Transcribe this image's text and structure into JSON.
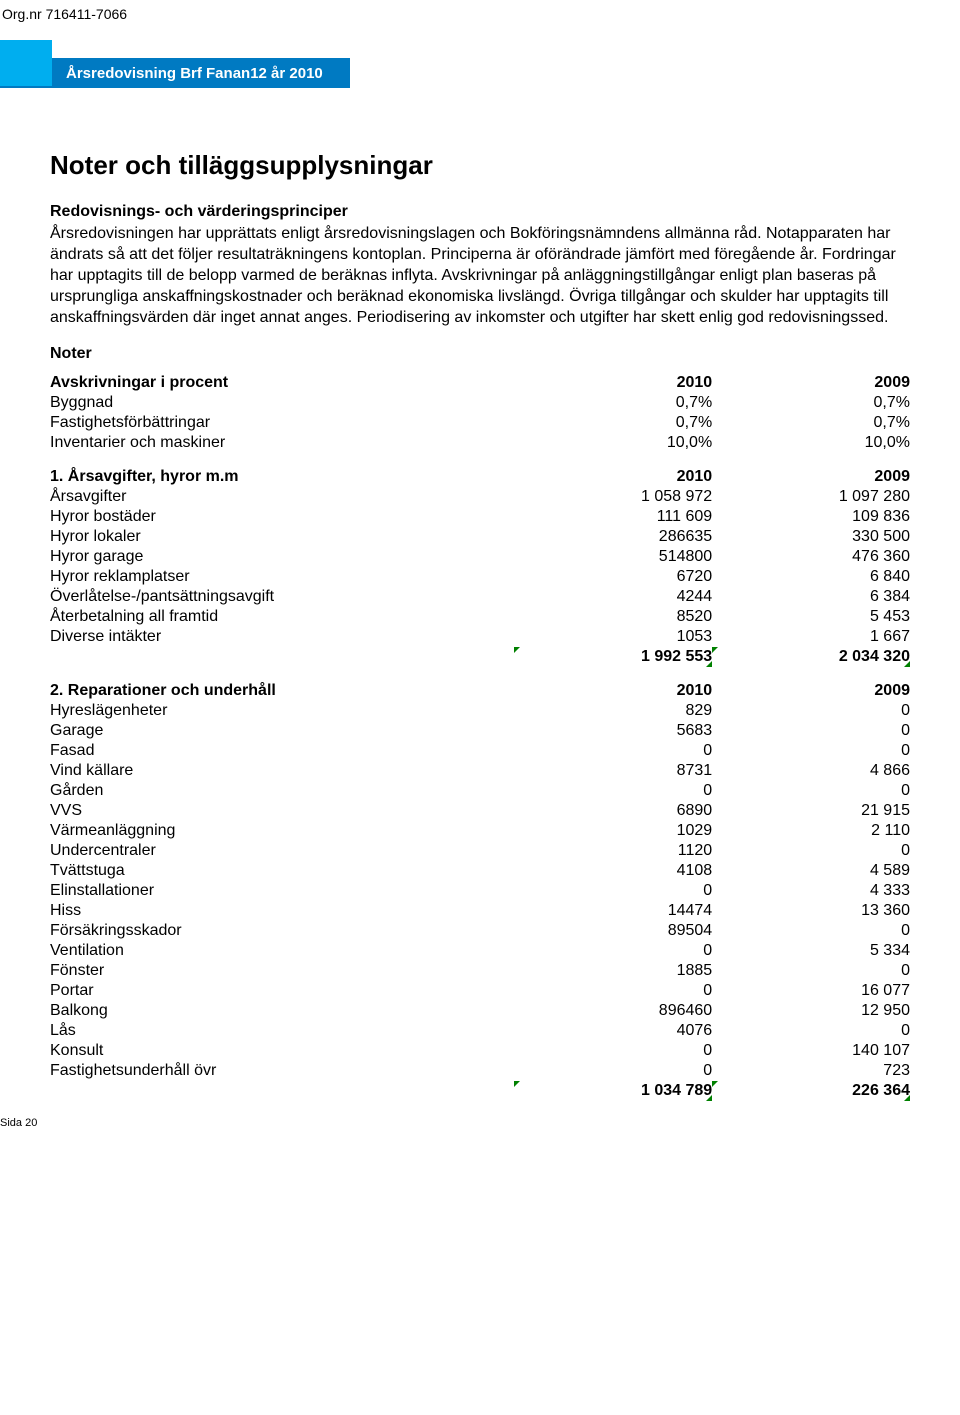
{
  "org_nr": "Org.nr 716411-7066",
  "banner_text": "Årsredovisning Brf Fanan12 år 2010",
  "main_heading": "Noter och tilläggsupplysningar",
  "sub_heading": "Redovisnings- och värderingsprinciper",
  "body_text": "Årsredovisningen har upprättats enligt årsredovisningslagen och Bokföringsnämndens allmänna råd. Notapparaten har ändrats så att det följer resultaträkningens kontoplan. Principerna är oförändrade jämfört med föregående år. Fordringar har upptagits till de belopp varmed de beräknas inflyta. Avskrivningar på anläggningstillgångar enligt plan baseras på ursprungliga anskaffningskostnader och beräknad ekonomiska livslängd. Övriga tillgångar och skulder har upptagits till anskaffningsvärden där inget annat anges. Periodisering av inkomster och utgifter har skett enlig god redovisningssed.",
  "noter_label": "Noter",
  "tables": {
    "avskrivningar": {
      "header": [
        "Avskrivningar i procent",
        "2010",
        "2009"
      ],
      "rows": [
        [
          "Byggnad",
          "0,7%",
          "0,7%"
        ],
        [
          "Fastighetsförbättringar",
          "0,7%",
          "0,7%"
        ],
        [
          "Inventarier och maskiner",
          "10,0%",
          "10,0%"
        ]
      ]
    },
    "arsavgifter": {
      "header": [
        "1. Årsavgifter, hyror m.m",
        "2010",
        "2009"
      ],
      "rows": [
        [
          "Årsavgifter",
          "1 058 972",
          "1 097 280"
        ],
        [
          "Hyror bostäder",
          "111 609",
          "109 836"
        ],
        [
          "Hyror lokaler",
          "286635",
          "330 500"
        ],
        [
          "Hyror garage",
          "514800",
          "476 360"
        ],
        [
          "Hyror reklamplatser",
          "6720",
          "6 840"
        ],
        [
          "Överlåtelse-/pantsättningsavgift",
          "4244",
          "6 384"
        ],
        [
          "Återbetalning all framtid",
          "8520",
          "5 453"
        ],
        [
          "Diverse intäkter",
          "1053",
          "1 667"
        ]
      ],
      "total": [
        "",
        "1 992 553",
        "2 034 320"
      ]
    },
    "reparationer": {
      "header": [
        "2. Reparationer och underhåll",
        "2010",
        "2009"
      ],
      "rows": [
        [
          "Hyreslägenheter",
          "829",
          "0"
        ],
        [
          "Garage",
          "5683",
          "0"
        ],
        [
          "Fasad",
          "0",
          "0"
        ],
        [
          "Vind källare",
          "8731",
          "4 866"
        ],
        [
          "Gården",
          "0",
          "0"
        ],
        [
          "VVS",
          "6890",
          "21 915"
        ],
        [
          "Värmeanläggning",
          "1029",
          "2 110"
        ],
        [
          "Undercentraler",
          "1120",
          "0"
        ],
        [
          "Tvättstuga",
          "4108",
          "4 589"
        ],
        [
          "Elinstallationer",
          "0",
          "4 333"
        ],
        [
          "Hiss",
          "14474",
          "13 360"
        ],
        [
          "Försäkringsskador",
          "89504",
          "0"
        ],
        [
          "Ventilation",
          "0",
          "5 334"
        ],
        [
          "Fönster",
          "1885",
          "0"
        ],
        [
          "Portar",
          "0",
          "16 077"
        ],
        [
          "Balkong",
          "896460",
          "12 950"
        ],
        [
          "Lås",
          "4076",
          "0"
        ],
        [
          "Konsult",
          "0",
          "140 107"
        ],
        [
          "Fastighetsunderhåll övr",
          "0",
          "723"
        ]
      ],
      "total": [
        "",
        "1 034 789",
        "226 364"
      ]
    }
  },
  "footer_page": "Sida 20",
  "colors": {
    "banner_light": "#00aeef",
    "banner_dark": "#007ac2",
    "tick_green": "#008000"
  }
}
